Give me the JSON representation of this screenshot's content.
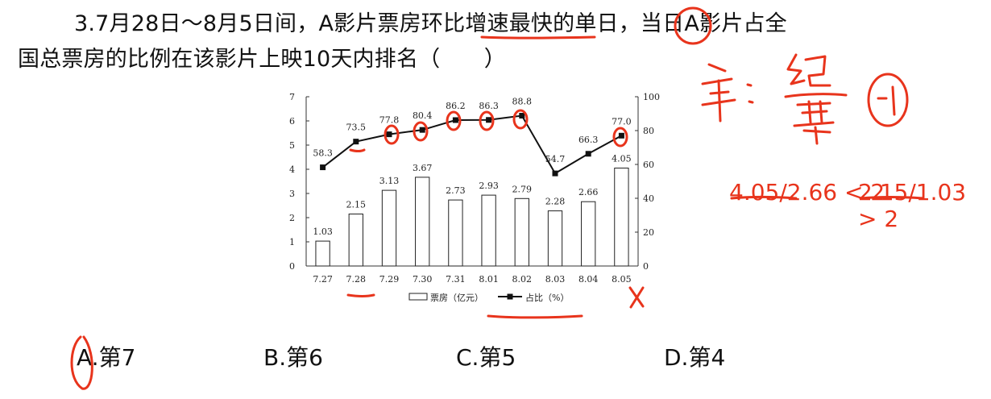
{
  "question": {
    "line1": "3.7月28日～8月5日间，A影片票房环比增速最快的单日，当日A影片占全",
    "line2": "国总票房的比例在该影片上映10天内排名（　　）"
  },
  "options": [
    {
      "label": "A.第7"
    },
    {
      "label": "B.第6"
    },
    {
      "label": "C.第5"
    },
    {
      "label": "D.第4"
    }
  ],
  "annotations": {
    "note_line1": "4.05/2.66 < 2",
    "note_line2": "2.15/1.03 > 2"
  },
  "chart_data": {
    "type": "bar",
    "categories": [
      "7.27",
      "7.28",
      "7.29",
      "7.30",
      "7.31",
      "8.01",
      "8.02",
      "8.03",
      "8.04",
      "8.05"
    ],
    "series": [
      {
        "name": "票房（亿元）",
        "type": "bar",
        "axis": "left",
        "values": [
          1.03,
          2.15,
          3.13,
          3.67,
          2.73,
          2.93,
          2.79,
          2.28,
          2.66,
          4.05
        ],
        "labels": [
          "1.03",
          "2.15",
          "3.13",
          "3.67",
          "2.73",
          "2.93",
          "2.79",
          "2.28",
          "2.66",
          "4.05"
        ]
      },
      {
        "name": "占比（%）",
        "type": "line",
        "axis": "right",
        "values": [
          58.3,
          73.5,
          77.8,
          80.4,
          86.2,
          86.3,
          88.8,
          54.7,
          66.3,
          77.0
        ],
        "labels": [
          "58.3",
          "73.5",
          "77.8",
          "80.4",
          "86.2",
          "86.3",
          "88.8",
          "54.7",
          "66.3",
          "77.0"
        ]
      }
    ],
    "y_left": {
      "range": [
        0,
        7
      ],
      "ticks": [
        "0",
        "1",
        "2",
        "3",
        "4",
        "5",
        "6",
        "7"
      ]
    },
    "y_right": {
      "range": [
        0,
        100
      ],
      "ticks": [
        "0",
        "20",
        "40",
        "60",
        "80",
        "100"
      ]
    },
    "legend_position": "bottom",
    "grid": false,
    "colors": {
      "bar_fill": "#ffffff",
      "bar_stroke": "#222222",
      "line": "#111111",
      "ink": "#e8341c"
    }
  }
}
